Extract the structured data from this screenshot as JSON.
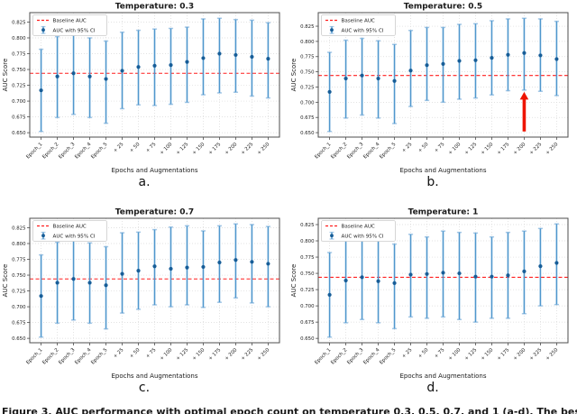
{
  "figure": {
    "caption": "Figure 3. AUC performance with optimal epoch count on temperature 0.3, 0.5, 0.7, and 1 (a-d). The best AUC",
    "panel_labels": [
      "a.",
      "b.",
      "c.",
      "d."
    ]
  },
  "colors": {
    "baseline": "#ff1f1f",
    "errorbar": "#4f97cd",
    "errorbar_cap": "#a5c8e6",
    "marker": "#175d97",
    "arrow": "#ee1400",
    "grid": "#d9d9d9",
    "spine": "#4d4d4d",
    "text": "#1a1a1a",
    "legend_border": "#cccccc"
  },
  "chart_data": [
    {
      "type": "errorbar",
      "title": "Temperature: 0.3",
      "xlabel": "Epochs and Augmentations",
      "ylabel": "AUC Score",
      "legend": [
        "Baseline AUC",
        "AUC with 95% CI"
      ],
      "legend_position": "upper-left",
      "grid": true,
      "yticks": [
        0.65,
        0.675,
        0.7,
        0.725,
        0.75,
        0.775,
        0.8,
        0.825
      ],
      "baseline_auc": 0.744,
      "categories": [
        "Epoch_1",
        "Epoch_2",
        "Epoch_3",
        "Epoch_4",
        "Epoch_5",
        "+ 25",
        "+ 50",
        "+ 75",
        "+ 100",
        "+ 125",
        "+ 150",
        "+ 175",
        "+ 200",
        "+ 225",
        "+ 250"
      ],
      "series": [
        {
          "name": "AUC with 95% CI",
          "values": [
            0.717,
            0.739,
            0.744,
            0.739,
            0.735,
            0.748,
            0.754,
            0.756,
            0.757,
            0.762,
            0.768,
            0.775,
            0.773,
            0.77,
            0.767
          ],
          "ci_low": [
            0.652,
            0.674,
            0.679,
            0.674,
            0.665,
            0.688,
            0.694,
            0.693,
            0.695,
            0.698,
            0.71,
            0.713,
            0.714,
            0.708,
            0.705
          ],
          "ci_high": [
            0.782,
            0.802,
            0.804,
            0.8,
            0.795,
            0.809,
            0.812,
            0.814,
            0.815,
            0.817,
            0.83,
            0.831,
            0.829,
            0.828,
            0.824
          ]
        }
      ],
      "annotation": null
    },
    {
      "type": "errorbar",
      "title": "Temperature: 0.5",
      "xlabel": "Epochs and Augmentations",
      "ylabel": "AUC Score",
      "legend": [
        "Baseline AUC",
        "AUC with 95% CI"
      ],
      "legend_position": "upper-left",
      "grid": true,
      "yticks": [
        0.65,
        0.675,
        0.7,
        0.725,
        0.75,
        0.775,
        0.8,
        0.825
      ],
      "baseline_auc": 0.744,
      "categories": [
        "Epoch_1",
        "Epoch_2",
        "Epoch_3",
        "Epoch_4",
        "Epoch_5",
        "+ 25",
        "+ 50",
        "+ 75",
        "+ 100",
        "+ 125",
        "+ 150",
        "+ 175",
        "+ 200",
        "+ 225",
        "+ 250"
      ],
      "series": [
        {
          "name": "AUC with 95% CI",
          "values": [
            0.717,
            0.739,
            0.744,
            0.739,
            0.735,
            0.752,
            0.761,
            0.763,
            0.768,
            0.769,
            0.773,
            0.778,
            0.781,
            0.777,
            0.771
          ],
          "ci_low": [
            0.652,
            0.674,
            0.679,
            0.674,
            0.665,
            0.693,
            0.703,
            0.7,
            0.705,
            0.707,
            0.712,
            0.719,
            0.72,
            0.718,
            0.711
          ],
          "ci_high": [
            0.782,
            0.802,
            0.805,
            0.801,
            0.795,
            0.818,
            0.823,
            0.823,
            0.828,
            0.829,
            0.834,
            0.837,
            0.838,
            0.837,
            0.833
          ]
        }
      ],
      "annotation": {
        "type": "arrow",
        "category": "+ 200",
        "category_index": 12,
        "y_tail": 0.652,
        "y_tip": 0.717
      }
    },
    {
      "type": "errorbar",
      "title": "Temperature: 0.7",
      "xlabel": "Epochs and Augmentations",
      "ylabel": "AUC Score",
      "legend": [
        "Baseline AUC",
        "AUC with 95% CI"
      ],
      "legend_position": "upper-left",
      "grid": true,
      "yticks": [
        0.65,
        0.675,
        0.7,
        0.725,
        0.75,
        0.775,
        0.8,
        0.825
      ],
      "baseline_auc": 0.744,
      "categories": [
        "Epoch_1",
        "Epoch_2",
        "Epoch_3",
        "Epoch_4",
        "Epoch_5",
        "+ 25",
        "+ 50",
        "+ 75",
        "+ 100",
        "+ 125",
        "+ 150",
        "+ 175",
        "+ 200",
        "+ 225",
        "+ 250"
      ],
      "series": [
        {
          "name": "AUC with 95% CI",
          "values": [
            0.717,
            0.738,
            0.744,
            0.738,
            0.734,
            0.752,
            0.757,
            0.764,
            0.76,
            0.762,
            0.763,
            0.77,
            0.774,
            0.771,
            0.768
          ],
          "ci_low": [
            0.652,
            0.674,
            0.679,
            0.674,
            0.665,
            0.69,
            0.696,
            0.703,
            0.7,
            0.703,
            0.699,
            0.707,
            0.714,
            0.706,
            0.7
          ],
          "ci_high": [
            0.782,
            0.802,
            0.805,
            0.801,
            0.795,
            0.817,
            0.818,
            0.822,
            0.826,
            0.828,
            0.82,
            0.828,
            0.831,
            0.83,
            0.827
          ]
        }
      ],
      "annotation": null
    },
    {
      "type": "errorbar",
      "title": "Temperature: 1",
      "xlabel": "Epochs and Augmentations",
      "ylabel": "AUC Score",
      "legend": [
        "Baseline AUC",
        "AUC with 95% CI"
      ],
      "legend_position": "upper-left",
      "grid": true,
      "yticks": [
        0.65,
        0.675,
        0.7,
        0.725,
        0.75,
        0.775,
        0.8,
        0.825
      ],
      "baseline_auc": 0.744,
      "categories": [
        "Epoch_1",
        "Epoch_2",
        "Epoch_3",
        "Epoch_4",
        "Epoch_5",
        "+ 25",
        "+ 50",
        "+ 75",
        "+ 100",
        "+ 125",
        "+ 150",
        "+ 175",
        "+ 200",
        "+ 225",
        "+ 250"
      ],
      "series": [
        {
          "name": "AUC with 95% CI",
          "values": [
            0.717,
            0.739,
            0.744,
            0.738,
            0.735,
            0.748,
            0.749,
            0.751,
            0.75,
            0.745,
            0.745,
            0.747,
            0.753,
            0.761,
            0.766
          ],
          "ci_low": [
            0.652,
            0.674,
            0.679,
            0.674,
            0.665,
            0.683,
            0.681,
            0.683,
            0.679,
            0.675,
            0.681,
            0.681,
            0.688,
            0.7,
            0.702
          ],
          "ci_high": [
            0.782,
            0.802,
            0.805,
            0.801,
            0.795,
            0.81,
            0.806,
            0.815,
            0.813,
            0.812,
            0.806,
            0.813,
            0.815,
            0.819,
            0.826
          ]
        }
      ],
      "annotation": null
    }
  ]
}
